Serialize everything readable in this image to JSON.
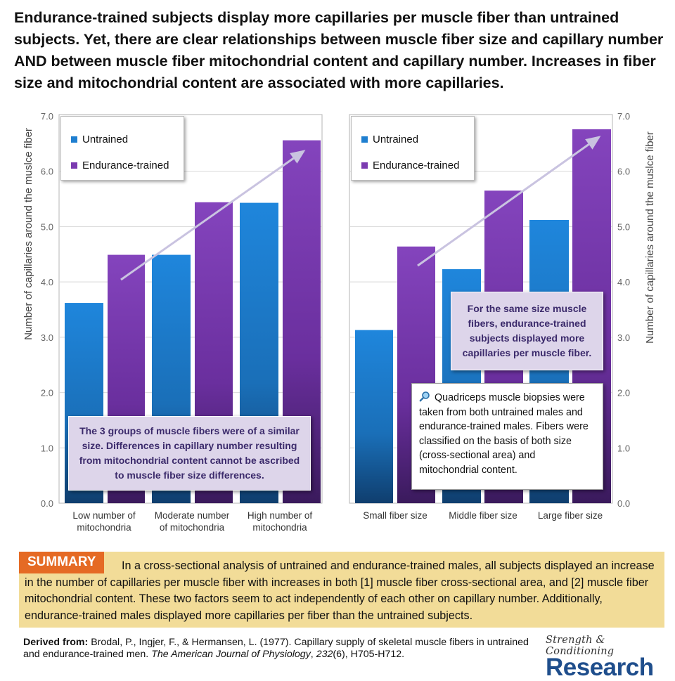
{
  "headline": "Endurance-trained subjects display more capillaries per muscle fiber than untrained subjects. Yet, there are clear relationships between muscle fiber size and capillary number AND between muscle fiber mitochondrial content and capillary number. Increases in fiber size and mitochondrial content are associated with more capillaries.",
  "colors": {
    "untrained": "#1f7fd0",
    "endurance": "#7b3bb0",
    "summary_bg": "#f2dc98",
    "summary_tag": "#e56a24",
    "brand": "#1f4e8c"
  },
  "chart_data": [
    {
      "type": "bar",
      "categories": [
        "Low number of mitochondria",
        "Moderate number of mitochondria",
        "High number of mitochondria"
      ],
      "category_lines": [
        [
          "Low number of",
          "mitochondria"
        ],
        [
          "Moderate number",
          "of mitochondria"
        ],
        [
          "High number of",
          "mitochondria"
        ]
      ],
      "series": [
        {
          "name": "Untrained",
          "values": [
            3.62,
            4.49,
            5.43
          ]
        },
        {
          "name": "Endurance-trained",
          "values": [
            4.49,
            5.44,
            6.56
          ]
        }
      ],
      "ylabel": "Number of capillaries around the muslce fiber",
      "ylim": [
        0,
        7
      ],
      "yticks": [
        "0.0",
        "1.0",
        "2.0",
        "3.0",
        "4.0",
        "5.0",
        "6.0",
        "7.0"
      ],
      "legend": "top-left",
      "annotation": "The 3 groups of muscle fibers were of a similar size. Differences in capillary number resulting from mitochondrial content cannot be ascribed to muscle fiber size differences."
    },
    {
      "type": "bar",
      "categories": [
        "Small fiber size",
        "Middle fiber size",
        "Large fiber size"
      ],
      "category_lines": [
        [
          "Small fiber size"
        ],
        [
          "Middle fiber size"
        ],
        [
          "Large fiber size"
        ]
      ],
      "series": [
        {
          "name": "Untrained",
          "values": [
            3.13,
            4.23,
            5.12
          ]
        },
        {
          "name": "Endurance-trained",
          "values": [
            4.64,
            5.65,
            6.76
          ]
        }
      ],
      "ylabel": "Number of capillaries around the muslce fiber",
      "ylim": [
        0,
        7
      ],
      "yticks": [
        "0.0",
        "1.0",
        "2.0",
        "3.0",
        "4.0",
        "5.0",
        "6.0",
        "7.0"
      ],
      "legend": "top-left",
      "annotation": "For the same size muscle fibers, endurance-trained subjects displayed more capillaries per muscle fiber.",
      "note": "Quadriceps muscle biopsies were taken from both untrained males and endurance-trained males. Fibers were classified on the basis of both size (cross-sectional area) and mitochondrial content."
    }
  ],
  "summary": {
    "tag": "SUMMARY",
    "text": "In a cross-sectional analysis of untrained and endurance-trained males, all subjects displayed an increase in the number of capillaries per muscle fiber with increases in both [1] muscle fiber cross-sectional area, and [2] muscle fiber mitochondrial content. These two factors seem to act independently of each other on capillary number. Additionally, endurance-trained males displayed more capillaries per fiber than the untrained subjects."
  },
  "source": {
    "label": "Derived from:",
    "text_a": " Brodal, P., Ingjer, F., & Hermansen, L. (1977). Capillary supply of skeletal muscle fibers in untrained and endurance-trained men. ",
    "journal": "The American Journal of Physiology",
    "text_b": ", ",
    "volume": "232",
    "text_c": "(6), H705-H712."
  },
  "brand": {
    "top": "Strength & Conditioning",
    "bottom": "Research"
  }
}
